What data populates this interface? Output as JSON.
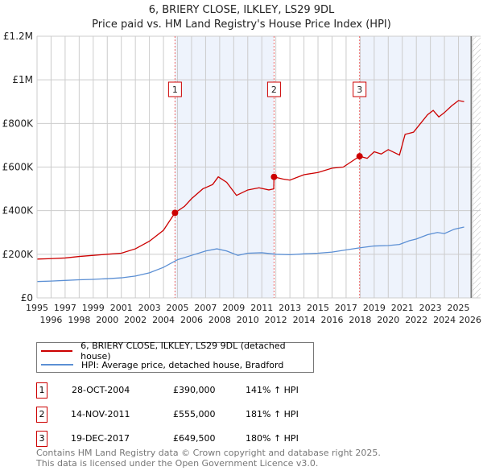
{
  "chart_data": {
    "type": "line",
    "title": "6, BRIERY CLOSE, ILKLEY, LS29 9DL",
    "subtitle": "Price paid vs. HM Land Registry's House Price Index (HPI)",
    "xlim": [
      1995,
      2026
    ],
    "ylim": [
      0,
      1200000
    ],
    "y_ticks": [
      {
        "v": 0,
        "label": "£0"
      },
      {
        "v": 200000,
        "label": "£200K"
      },
      {
        "v": 400000,
        "label": "£400K"
      },
      {
        "v": 600000,
        "label": "£600K"
      },
      {
        "v": 800000,
        "label": "£800K"
      },
      {
        "v": 1000000,
        "label": "£1M"
      },
      {
        "v": 1200000,
        "label": "£1.2M"
      }
    ],
    "x_ticks": [
      "1995",
      "1996",
      "1997",
      "1998",
      "1999",
      "2000",
      "2001",
      "2002",
      "2003",
      "2004",
      "2005",
      "2006",
      "2007",
      "2008",
      "2009",
      "2010",
      "2011",
      "2012",
      "2013",
      "2014",
      "2015",
      "2016",
      "2017",
      "2018",
      "2019",
      "2020",
      "2021",
      "2022",
      "2023",
      "2024",
      "2025",
      "2026"
    ],
    "series": [
      {
        "name": "6, BRIERY CLOSE, ILKLEY, LS29 9DL (detached house)",
        "color": "#cc0000",
        "x": [
          1995,
          1996,
          1997,
          1998,
          1999,
          2000,
          2001,
          2002,
          2003,
          2004,
          2004.82,
          2005.5,
          2006,
          2006.8,
          2007.5,
          2007.9,
          2008.5,
          2009.2,
          2010,
          2010.8,
          2011.5,
          2011.85,
          2011.87,
          2012.5,
          2013,
          2014,
          2015,
          2016,
          2016.8,
          2017.5,
          2017.96,
          2018.5,
          2019,
          2019.5,
          2020,
          2020.8,
          2021.2,
          2021.8,
          2022.3,
          2022.8,
          2023.2,
          2023.6,
          2024,
          2024.5,
          2025,
          2025.4
        ],
        "y": [
          178000,
          180000,
          183000,
          190000,
          195000,
          200000,
          205000,
          225000,
          260000,
          310000,
          390000,
          420000,
          455000,
          500000,
          520000,
          555000,
          530000,
          470000,
          495000,
          505000,
          495000,
          500000,
          555000,
          545000,
          540000,
          565000,
          575000,
          595000,
          600000,
          630000,
          649500,
          640000,
          670000,
          660000,
          680000,
          655000,
          750000,
          760000,
          800000,
          840000,
          860000,
          830000,
          850000,
          880000,
          905000,
          900000
        ]
      },
      {
        "name": "HPI: Average price, detached house, Bradford",
        "color": "#5b8fd4",
        "x": [
          1995,
          1996,
          1997,
          1998,
          1999,
          2000,
          2001,
          2002,
          2003,
          2004,
          2005,
          2006,
          2007,
          2007.8,
          2008.5,
          2009.3,
          2010,
          2011,
          2012,
          2013,
          2014,
          2015,
          2016,
          2017,
          2018,
          2019,
          2020,
          2020.8,
          2021.5,
          2022,
          2022.8,
          2023.5,
          2024,
          2024.7,
          2025.4
        ],
        "y": [
          75000,
          77000,
          80000,
          83000,
          85000,
          88000,
          92000,
          100000,
          115000,
          140000,
          175000,
          195000,
          215000,
          225000,
          215000,
          195000,
          205000,
          207000,
          200000,
          198000,
          202000,
          205000,
          210000,
          220000,
          230000,
          238000,
          240000,
          245000,
          262000,
          270000,
          290000,
          300000,
          295000,
          315000,
          325000
        ]
      }
    ],
    "sales": [
      {
        "n": "1",
        "x": 2004.82,
        "y": 390000,
        "date": "28-OCT-2004",
        "price": "£390,000",
        "hpi": "141% ↑ HPI"
      },
      {
        "n": "2",
        "x": 2011.87,
        "y": 555000,
        "date": "14-NOV-2011",
        "price": "£555,000",
        "hpi": "181% ↑ HPI"
      },
      {
        "n": "3",
        "x": 2017.96,
        "y": 649500,
        "date": "19-DEC-2017",
        "price": "£649,500",
        "hpi": "180% ↑ HPI"
      }
    ],
    "shaded": [
      [
        2004.82,
        2011.87
      ],
      [
        2017.96,
        2025.9
      ]
    ],
    "forecast_start": 2025.9
  },
  "footer": {
    "line1": "Contains HM Land Registry data © Crown copyright and database right 2025.",
    "line2": "This data is licensed under the Open Government Licence v3.0."
  }
}
